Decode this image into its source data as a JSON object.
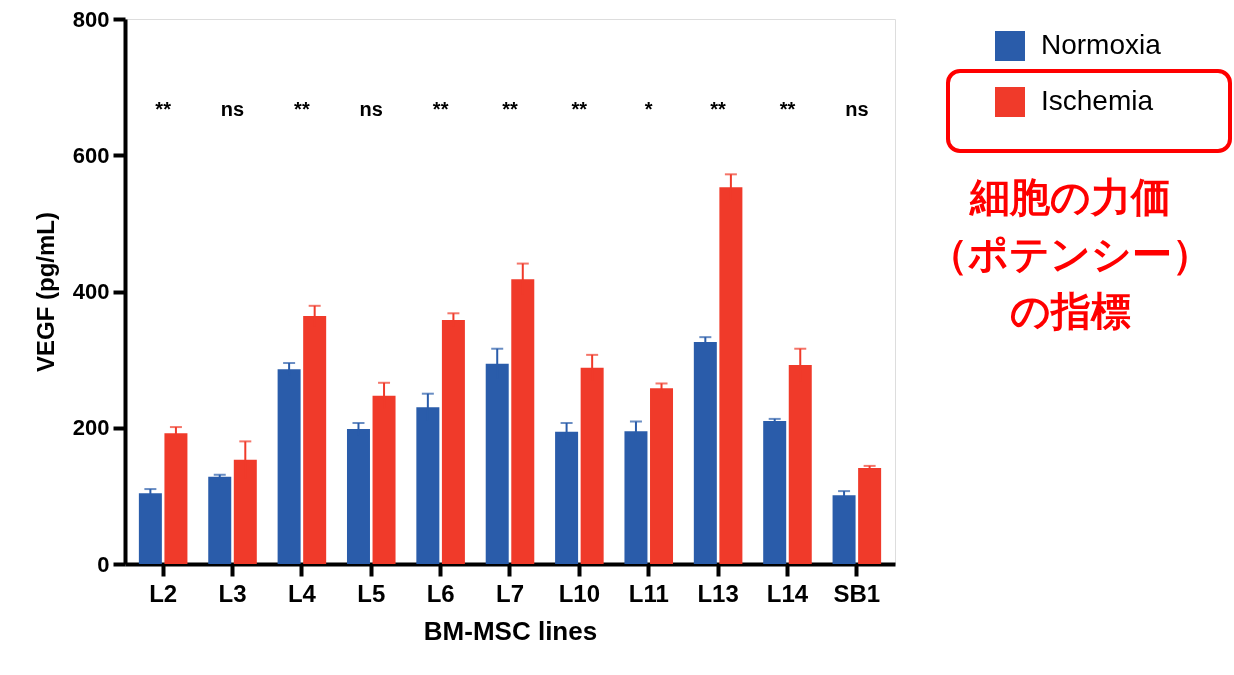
{
  "chart_data": {
    "type": "bar",
    "xlabel": "BM-MSC lines",
    "ylabel": "VEGF (pg/mL)",
    "categories": [
      "L2",
      "L3",
      "L4",
      "L5",
      "L6",
      "L7",
      "L10",
      "L11",
      "L13",
      "L14",
      "SB1"
    ],
    "series": [
      {
        "name": "Normoxia",
        "color": "#2a5caa",
        "values": [
          104,
          128,
          286,
          198,
          230,
          294,
          194,
          195,
          326,
          210,
          101
        ],
        "errors": [
          6,
          3,
          9,
          9,
          20,
          22,
          13,
          14,
          7,
          3,
          6
        ]
      },
      {
        "name": "Ischemia",
        "color": "#f03a2a",
        "values": [
          192,
          153,
          364,
          247,
          358,
          418,
          288,
          258,
          553,
          292,
          141
        ],
        "errors": [
          9,
          27,
          15,
          19,
          10,
          23,
          19,
          7,
          19,
          24,
          3
        ]
      }
    ],
    "ylim": [
      0,
      800
    ],
    "yticks": [
      0,
      200,
      400,
      600,
      800
    ],
    "grid": false,
    "legend": "top right",
    "annotations": [
      "**",
      "ns",
      "**",
      "ns",
      "**",
      "**",
      "**",
      "*",
      "**",
      "**",
      "ns",
      "細胞の力価",
      "（ポテンシー）",
      "の指標"
    ]
  }
}
